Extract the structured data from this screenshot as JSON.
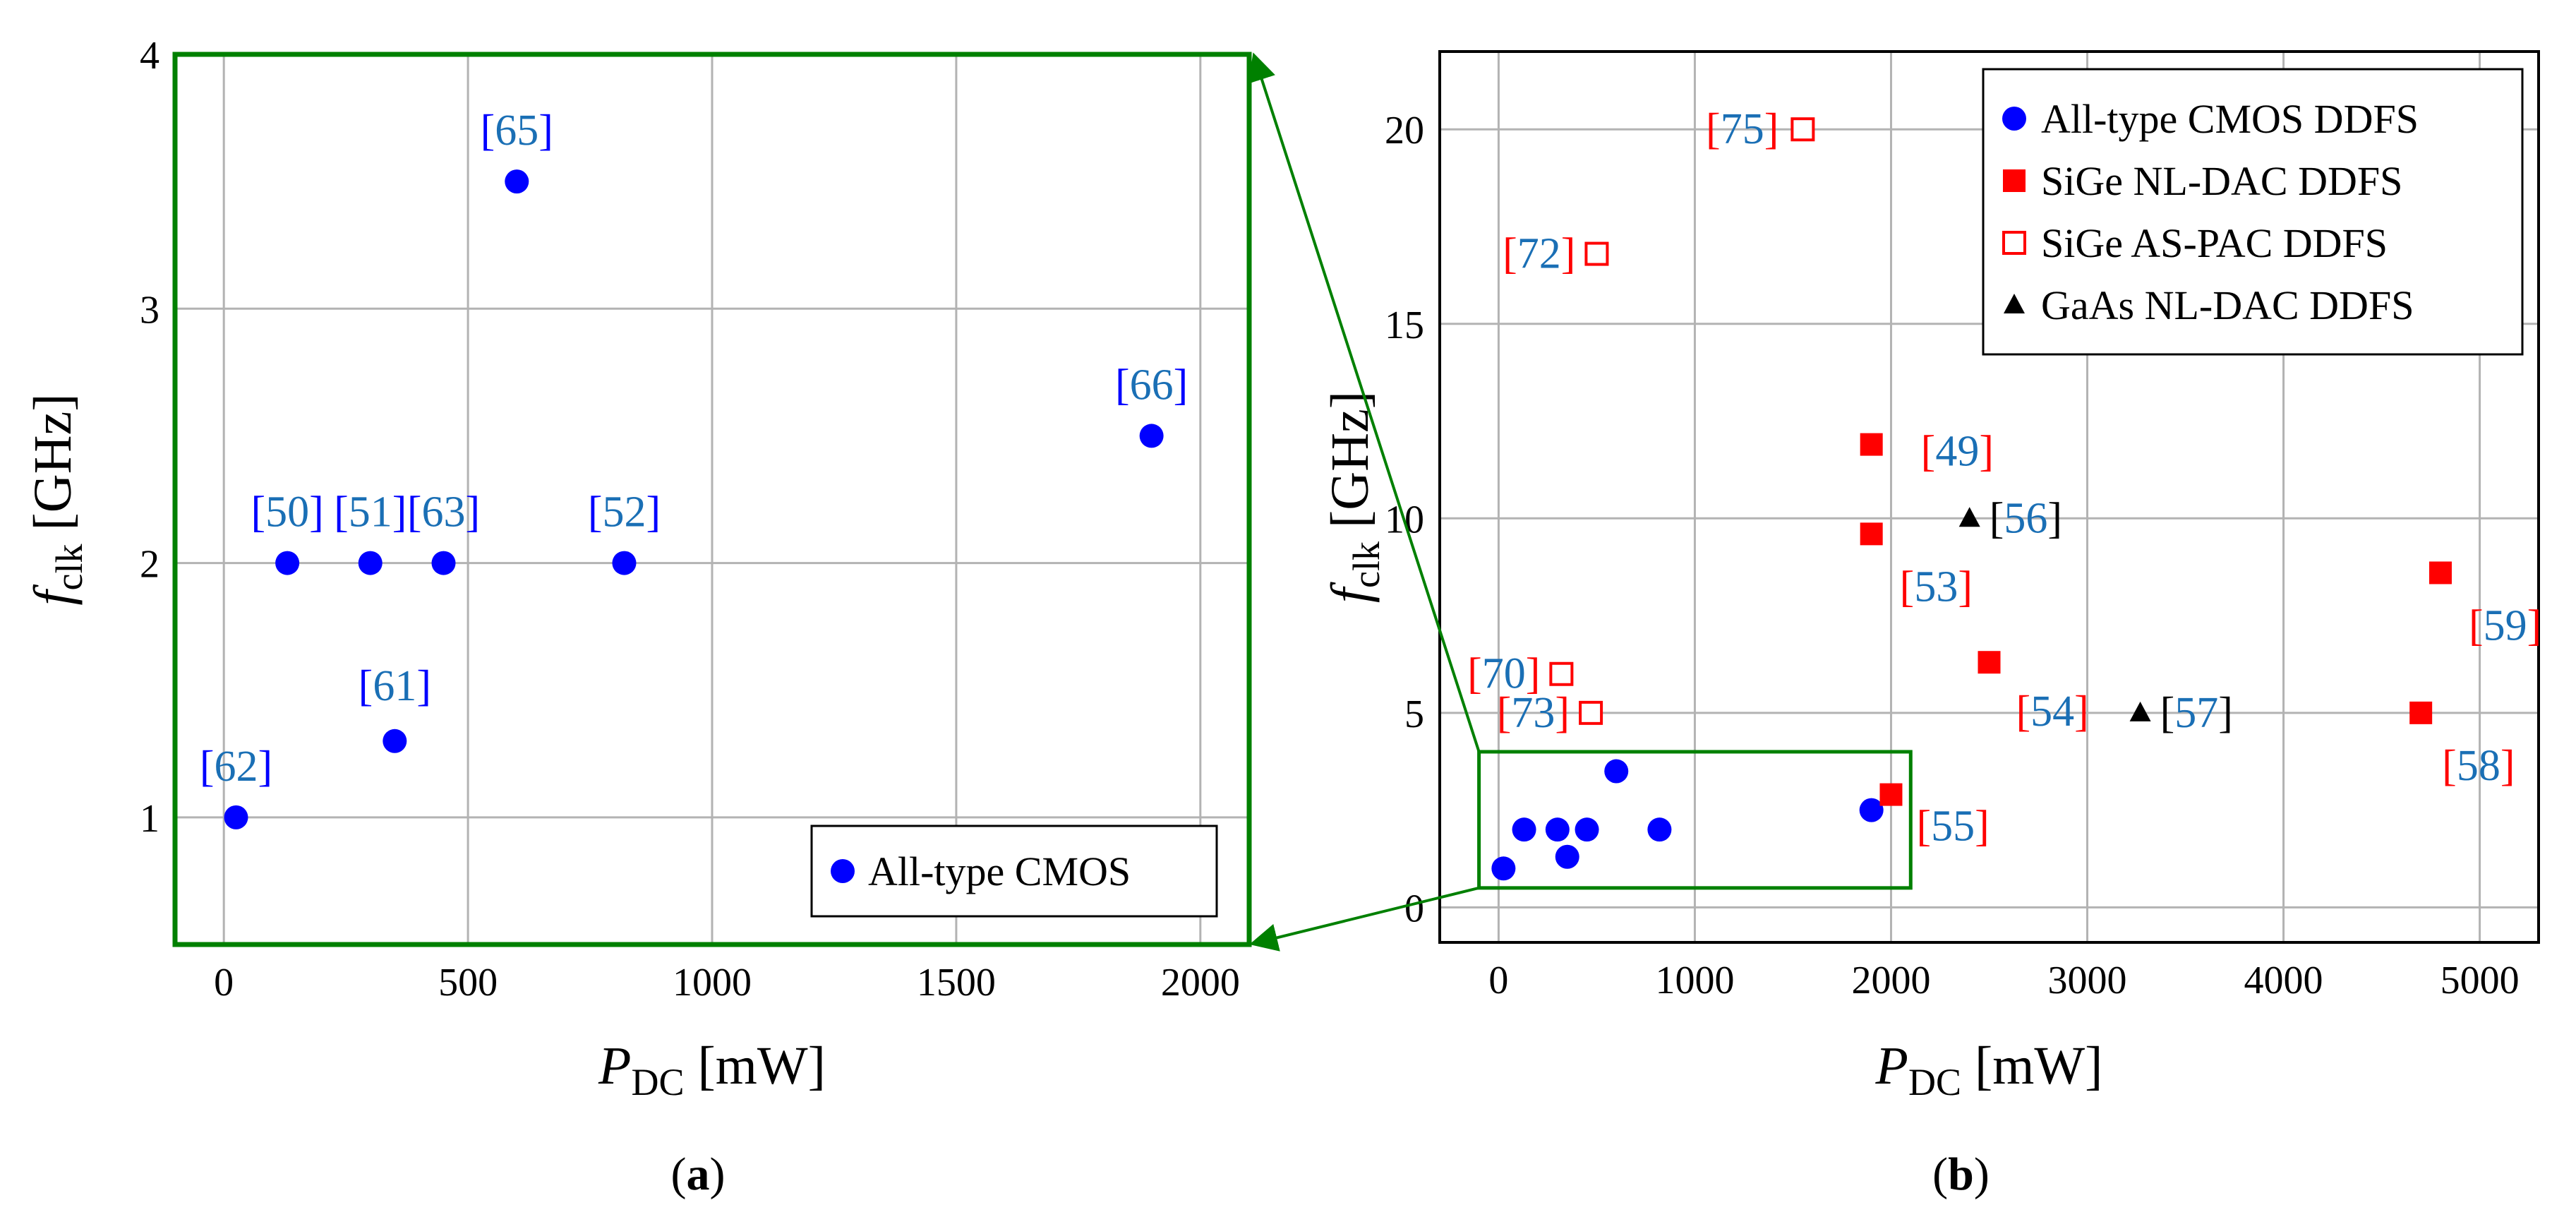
{
  "chart_data": [
    {
      "type": "scatter",
      "panel": "(a)",
      "panel_label": "a",
      "xlabel": "P_DC [mW]",
      "xlabel_main": "P",
      "xlabel_sub": "DC",
      "xlabel_unit": "[mW]",
      "ylabel": "f_clk [GHz]",
      "ylabel_main": "f",
      "ylabel_sub": "clk",
      "ylabel_unit": "[GHz]",
      "xlim": [
        -100,
        2100
      ],
      "ylim": [
        0.5,
        4
      ],
      "xticks": [
        0,
        500,
        1000,
        1500,
        2000
      ],
      "xtick_labels": [
        "0",
        "500",
        "1000",
        "1500",
        "2000"
      ],
      "yticks": [
        1,
        2,
        3,
        4
      ],
      "ytick_labels": [
        "1",
        "2",
        "3",
        "4"
      ],
      "grid": true,
      "legend_position": "bottom-right",
      "series": [
        {
          "name": "All-type CMOS",
          "marker": "circle",
          "color": "#0000ff",
          "points": [
            {
              "x": 25,
              "y": 1.0,
              "label": "[62]"
            },
            {
              "x": 130,
              "y": 2.0,
              "label": "[50]"
            },
            {
              "x": 300,
              "y": 2.0,
              "label": "[51]"
            },
            {
              "x": 350,
              "y": 1.3,
              "label": "[61]"
            },
            {
              "x": 450,
              "y": 2.0,
              "label": "[63]"
            },
            {
              "x": 600,
              "y": 3.5,
              "label": "[65]"
            },
            {
              "x": 820,
              "y": 2.0,
              "label": "[52]"
            },
            {
              "x": 1900,
              "y": 2.5,
              "label": "[66]"
            }
          ]
        }
      ]
    },
    {
      "type": "scatter",
      "panel": "(b)",
      "panel_label": "b",
      "xlabel": "P_DC [mW]",
      "xlabel_main": "P",
      "xlabel_sub": "DC",
      "xlabel_unit": "[mW]",
      "ylabel": "f_clk [GHz]",
      "ylabel_main": "f",
      "ylabel_sub": "clk",
      "ylabel_unit": "[GHz]",
      "xlim": [
        -300,
        5300
      ],
      "ylim": [
        -0.9,
        22
      ],
      "xticks": [
        0,
        1000,
        2000,
        3000,
        4000,
        5000
      ],
      "xtick_labels": [
        "0",
        "1000",
        "2000",
        "3000",
        "4000",
        "5000"
      ],
      "yticks": [
        0,
        5,
        10,
        15,
        20
      ],
      "ytick_labels": [
        "0",
        "5",
        "10",
        "15",
        "20"
      ],
      "grid": true,
      "legend_position": "top-right",
      "zoom_box": {
        "x": [
          -100,
          2100
        ],
        "y": [
          0.5,
          4
        ]
      },
      "series": [
        {
          "name": "All-type CMOS DDFS",
          "marker": "circle",
          "color": "#0000ff",
          "points": [
            {
              "x": 25,
              "y": 1.0
            },
            {
              "x": 130,
              "y": 2.0
            },
            {
              "x": 300,
              "y": 2.0
            },
            {
              "x": 350,
              "y": 1.3
            },
            {
              "x": 450,
              "y": 2.0
            },
            {
              "x": 600,
              "y": 3.5
            },
            {
              "x": 820,
              "y": 2.0
            },
            {
              "x": 1900,
              "y": 2.5
            }
          ]
        },
        {
          "name": "SiGe NL-DAC DDFS",
          "marker": "square-filled",
          "color": "#ff0000",
          "points": [
            {
              "x": 1900,
              "y": 11.9,
              "label": "[49]"
            },
            {
              "x": 1900,
              "y": 9.6,
              "label": "[53]"
            },
            {
              "x": 2000,
              "y": 2.9,
              "label": "[55]"
            },
            {
              "x": 2500,
              "y": 6.3,
              "label": "[54]"
            },
            {
              "x": 4700,
              "y": 5.0,
              "label": "[58]"
            },
            {
              "x": 4800,
              "y": 8.6,
              "label": "[59]"
            }
          ]
        },
        {
          "name": "SiGe AS-PAC DDFS",
          "marker": "square-open",
          "color": "#ff0000",
          "points": [
            {
              "x": 1550,
              "y": 20.0,
              "label": "[75]"
            },
            {
              "x": 500,
              "y": 16.8,
              "label": "[72]"
            },
            {
              "x": 320,
              "y": 6.0,
              "label": "[70]"
            },
            {
              "x": 470,
              "y": 5.0,
              "label": "[73]"
            }
          ]
        },
        {
          "name": "GaAs NL-DAC DDFS",
          "marker": "triangle",
          "color": "#000000",
          "points": [
            {
              "x": 2400,
              "y": 10.0,
              "label": "[56]"
            },
            {
              "x": 3270,
              "y": 5.0,
              "label": "[57]"
            }
          ]
        }
      ]
    }
  ]
}
